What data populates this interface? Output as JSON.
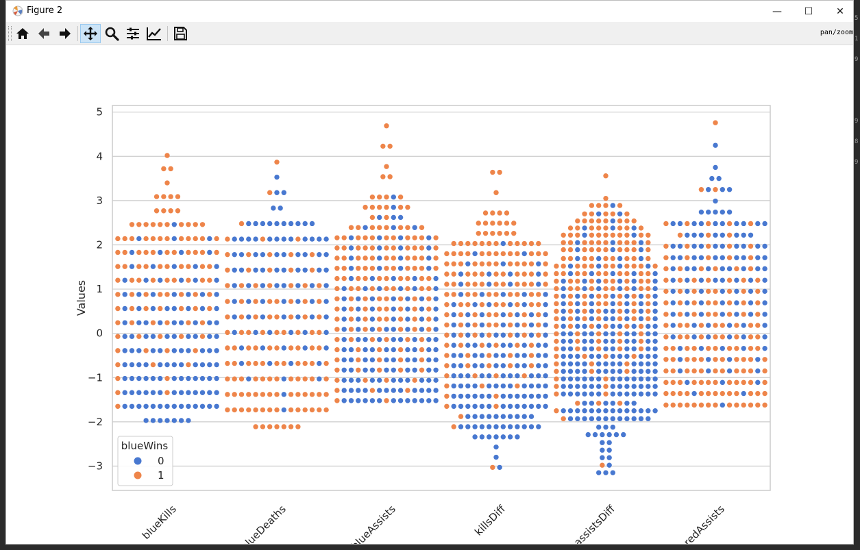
{
  "window": {
    "title": "Figure 2",
    "controls": {
      "minimize": "—",
      "maximize": "☐",
      "close": "✕"
    }
  },
  "toolbar": {
    "mode_label": "pan/zoom",
    "buttons": [
      "home-icon",
      "back-arrow-icon",
      "forward-arrow-icon",
      "pan-icon",
      "zoom-icon",
      "configure-subplots-icon",
      "edit-axis-icon",
      "save-icon"
    ],
    "active": "pan-icon"
  },
  "colors": {
    "class0": "#4878d0",
    "class1": "#ee854a",
    "grid": "#cccccc",
    "spine": "#cccccc",
    "text": "#262626"
  },
  "chart_data": {
    "type": "swarm",
    "ylabel": "Values",
    "xlabel": "",
    "ylim": [
      -3.55,
      5.15
    ],
    "yticks": [
      5,
      4,
      3,
      2,
      1,
      0,
      -1,
      -2,
      -3
    ],
    "ytick_labels": [
      "5",
      "4",
      "3",
      "2",
      "1",
      "0",
      "−1",
      "−2",
      "−3"
    ],
    "grid": true,
    "categories": [
      "blueKills",
      "blueDeaths",
      "blueAssists",
      "killsDiff",
      "assistsDiff",
      "redAssists"
    ],
    "legend": {
      "title": "blueWins",
      "entries": [
        "0",
        "1"
      ],
      "location": "lower-left"
    },
    "levels": [
      {
        "values": [
          4.02,
          3.72,
          3.4,
          3.09,
          2.77,
          2.46,
          2.14,
          1.83,
          1.51,
          1.2,
          0.88,
          0.56,
          0.24,
          -0.07,
          -0.39,
          -0.71,
          -1.02,
          -1.34,
          -1.65,
          -1.97
        ],
        "counts": [
          1,
          2,
          1,
          4,
          4,
          11,
          15,
          15,
          15,
          15,
          15,
          15,
          15,
          15,
          15,
          15,
          15,
          15,
          15,
          7
        ],
        "fraction_class1": [
          1.0,
          1.0,
          1.0,
          1.0,
          1.0,
          0.95,
          0.8,
          0.75,
          0.65,
          0.6,
          0.5,
          0.45,
          0.4,
          0.3,
          0.25,
          0.2,
          0.12,
          0.1,
          0.05,
          0.0
        ]
      },
      {
        "values": [
          3.87,
          3.53,
          3.18,
          2.83,
          2.48,
          2.13,
          1.78,
          1.43,
          1.08,
          0.72,
          0.37,
          0.02,
          -0.33,
          -0.68,
          -1.03,
          -1.38,
          -1.73,
          -2.11
        ],
        "counts": [
          1,
          1,
          3,
          2,
          11,
          15,
          15,
          15,
          15,
          15,
          15,
          15,
          15,
          15,
          15,
          15,
          15,
          7
        ],
        "fraction_class1": [
          1.0,
          0.0,
          0.2,
          0.0,
          0.1,
          0.2,
          0.3,
          0.35,
          0.45,
          0.5,
          0.55,
          0.6,
          0.65,
          0.75,
          0.8,
          0.9,
          0.95,
          1.0
        ]
      },
      {
        "values": [
          4.69,
          4.23,
          3.77,
          3.54,
          3.08,
          2.85,
          2.62,
          2.39,
          2.16,
          1.93,
          1.7,
          1.47,
          1.24,
          1.01,
          0.78,
          0.55,
          0.32,
          0.09,
          -0.14,
          -0.37,
          -0.6,
          -0.83,
          -1.06,
          -1.29,
          -1.52
        ],
        "counts": [
          1,
          2,
          1,
          2,
          5,
          7,
          5,
          11,
          15,
          15,
          15,
          15,
          15,
          15,
          15,
          15,
          15,
          15,
          15,
          15,
          15,
          15,
          15,
          15,
          15
        ],
        "fraction_class1": [
          1.0,
          1.0,
          1.0,
          1.0,
          0.8,
          0.85,
          0.4,
          0.7,
          0.75,
          0.75,
          0.7,
          0.7,
          0.65,
          0.6,
          0.55,
          0.5,
          0.5,
          0.45,
          0.4,
          0.35,
          0.35,
          0.3,
          0.25,
          0.2,
          0.15
        ]
      },
      {
        "values": [
          3.64,
          3.18,
          2.72,
          2.49,
          2.26,
          2.03,
          1.8,
          1.57,
          1.34,
          1.11,
          0.88,
          0.65,
          0.42,
          0.19,
          -0.04,
          -0.27,
          -0.5,
          -0.73,
          -0.96,
          -1.19,
          -1.42,
          -1.65,
          -1.88,
          -2.11,
          -2.34,
          -2.57,
          -2.8,
          -3.03
        ],
        "counts": [
          2,
          1,
          4,
          6,
          6,
          13,
          15,
          15,
          15,
          15,
          15,
          15,
          15,
          15,
          15,
          15,
          15,
          15,
          15,
          15,
          15,
          15,
          11,
          13,
          7,
          1,
          1,
          2
        ],
        "fraction_class1": [
          1.0,
          1.0,
          1.0,
          1.0,
          0.95,
          0.9,
          0.85,
          0.8,
          0.75,
          0.7,
          0.65,
          0.6,
          0.55,
          0.5,
          0.45,
          0.4,
          0.35,
          0.3,
          0.25,
          0.2,
          0.15,
          0.1,
          0.05,
          0.1,
          0.0,
          0.0,
          0.0,
          0.5
        ]
      },
      {
        "values": [
          3.56,
          3.05,
          2.89,
          2.7,
          2.54,
          2.38,
          2.22,
          2.05,
          1.89,
          1.69,
          1.52,
          1.35,
          1.18,
          1.01,
          0.84,
          0.67,
          0.5,
          0.33,
          0.16,
          -0.01,
          -0.18,
          -0.35,
          -0.52,
          -0.69,
          -0.86,
          -1.03,
          -1.2,
          -1.37,
          -1.58,
          -1.75,
          -1.93,
          -2.12,
          -2.29,
          -2.47,
          -2.64,
          -2.81,
          -2.98,
          -3.15
        ],
        "counts": [
          1,
          1,
          5,
          7,
          9,
          11,
          13,
          13,
          13,
          13,
          15,
          15,
          15,
          15,
          15,
          15,
          15,
          15,
          15,
          15,
          15,
          15,
          15,
          15,
          15,
          15,
          15,
          15,
          9,
          15,
          13,
          3,
          6,
          2,
          2,
          2,
          2,
          3
        ],
        "fraction_class1": [
          1.0,
          1.0,
          0.8,
          0.7,
          0.85,
          0.75,
          0.85,
          0.8,
          0.8,
          0.7,
          0.7,
          0.65,
          0.6,
          0.6,
          0.55,
          0.5,
          0.45,
          0.45,
          0.4,
          0.35,
          0.3,
          0.3,
          0.25,
          0.2,
          0.2,
          0.15,
          0.15,
          0.1,
          0.3,
          0.05,
          0.05,
          0.0,
          0.0,
          0.0,
          0.0,
          0.0,
          0.5,
          0.0
        ]
      },
      {
        "values": [
          4.76,
          4.25,
          3.75,
          3.5,
          3.25,
          2.99,
          2.74,
          2.48,
          2.22,
          1.97,
          1.71,
          1.46,
          1.2,
          0.95,
          0.69,
          0.43,
          0.18,
          -0.08,
          -0.34,
          -0.59,
          -0.85,
          -1.11,
          -1.36,
          -1.62
        ],
        "counts": [
          1,
          1,
          1,
          2,
          5,
          1,
          5,
          15,
          11,
          15,
          15,
          15,
          15,
          15,
          15,
          15,
          15,
          15,
          15,
          15,
          15,
          15,
          15,
          15
        ],
        "fraction_class1": [
          1.0,
          0.0,
          0.0,
          0.0,
          0.3,
          0.0,
          0.0,
          0.3,
          0.3,
          0.35,
          0.35,
          0.4,
          0.45,
          0.5,
          0.5,
          0.55,
          0.6,
          0.6,
          0.65,
          0.7,
          0.75,
          0.8,
          0.85,
          0.9
        ]
      }
    ]
  }
}
